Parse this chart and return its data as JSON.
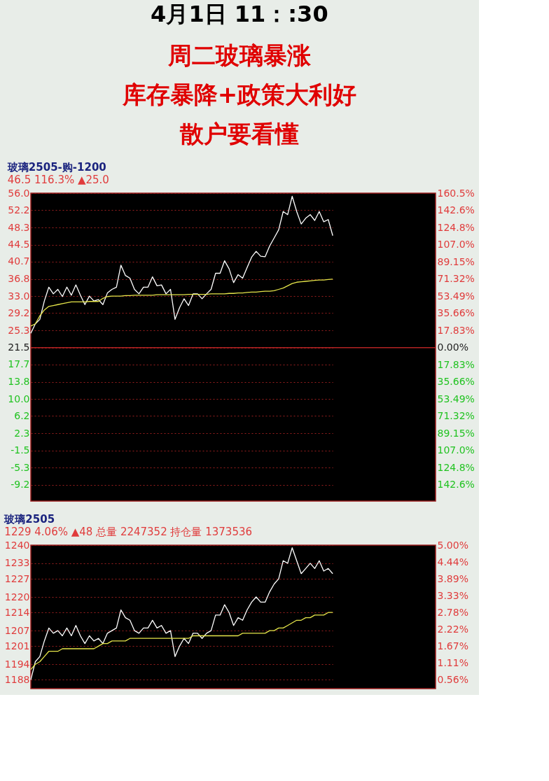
{
  "chart_data": [
    {
      "type": "line",
      "title": "玻璃2505-购-1200",
      "subtitle": "46.5 116.3% ▲25.0",
      "annotations": [
        "4月1日  11：:30",
        "周二玻璃暴涨",
        "库存暴降+政策大利好",
        "散户要看懂"
      ],
      "categories": [
        null,
        null,
        null,
        null,
        null,
        null,
        null,
        null,
        null,
        null,
        null,
        null,
        null,
        null,
        null,
        null,
        null,
        null,
        null,
        null,
        null,
        null,
        null,
        null,
        null,
        null,
        null,
        null,
        null,
        null,
        null,
        null,
        null,
        null,
        null,
        null,
        null,
        null,
        null,
        null,
        null,
        null,
        null,
        null,
        null,
        null,
        null,
        null,
        null,
        null,
        null,
        null,
        null,
        null,
        null,
        null,
        null,
        null,
        null,
        null,
        null,
        null,
        null,
        null,
        null,
        null,
        null,
        null
      ],
      "series": [
        {
          "color": "#ffffff",
          "values": [
            24.7,
            26.8,
            27.8,
            31.9,
            35.0,
            33.5,
            34.5,
            32.9,
            35.0,
            33.2,
            35.5,
            33.2,
            31.1,
            33.0,
            31.9,
            32.2,
            31.1,
            33.7,
            34.5,
            35.0,
            39.9,
            37.6,
            37.0,
            34.5,
            33.5,
            35.0,
            35.0,
            37.3,
            35.3,
            35.5,
            33.5,
            34.5,
            27.8,
            30.4,
            32.4,
            30.9,
            33.5,
            33.5,
            32.4,
            33.5,
            34.5,
            38.1,
            38.1,
            40.9,
            39.1,
            36.0,
            37.8,
            37.0,
            39.4,
            41.7,
            43.0,
            41.9,
            41.8,
            44.2,
            46.0,
            47.8,
            51.9,
            51.2,
            55.3,
            51.9,
            49.1,
            50.4,
            51.2,
            49.9,
            51.9,
            49.6,
            50.1,
            46.5
          ]
        },
        {
          "color": "#e6e64a",
          "values": [
            26.3,
            26.8,
            28.6,
            29.9,
            30.7,
            30.9,
            31.1,
            31.3,
            31.5,
            31.7,
            31.7,
            31.7,
            31.7,
            31.8,
            31.8,
            31.8,
            32.5,
            32.9,
            33.0,
            33.0,
            33.0,
            33.1,
            33.1,
            33.2,
            33.2,
            33.2,
            33.2,
            33.2,
            33.3,
            33.3,
            33.3,
            33.3,
            33.3,
            33.3,
            33.3,
            33.4,
            33.4,
            33.4,
            33.4,
            33.4,
            33.5,
            33.5,
            33.5,
            33.5,
            33.6,
            33.6,
            33.7,
            33.7,
            33.8,
            33.9,
            33.9,
            34.0,
            34.1,
            34.1,
            34.2,
            34.5,
            34.8,
            35.3,
            35.8,
            36.1,
            36.2,
            36.3,
            36.4,
            36.5,
            36.6,
            36.6,
            36.7,
            36.8
          ]
        }
      ],
      "ylim": [
        -12.8,
        56.0
      ],
      "yticks": [
        {
          "value": 56.0,
          "label": "56.0"
        },
        {
          "value": 52.2,
          "label": "52.2"
        },
        {
          "value": 48.3,
          "label": "48.3"
        },
        {
          "value": 44.5,
          "label": "44.5"
        },
        {
          "value": 40.7,
          "label": "40.7"
        },
        {
          "value": 36.8,
          "label": "36.8"
        },
        {
          "value": 33.0,
          "label": "33.0"
        },
        {
          "value": 29.2,
          "label": "29.2"
        },
        {
          "value": 25.3,
          "label": "25.3"
        },
        {
          "value": 21.5,
          "label": "21.5"
        },
        {
          "value": 17.7,
          "label": "17.7"
        },
        {
          "value": 13.8,
          "label": "13.8"
        },
        {
          "value": 10.0,
          "label": "10.0"
        },
        {
          "value": 6.2,
          "label": "6.2"
        },
        {
          "value": 2.3,
          "label": "2.3"
        },
        {
          "value": -1.5,
          "label": "-1.5"
        },
        {
          "value": -5.3,
          "label": "-5.3"
        },
        {
          "value": -9.2,
          "label": "-9.2"
        }
      ],
      "y2lim": [
        -159.6,
        160.5
      ],
      "y2ticks": [
        {
          "value": 160.5,
          "label": "160.5%"
        },
        {
          "value": 142.6,
          "label": "142.6%"
        },
        {
          "value": 124.8,
          "label": "124.8%"
        },
        {
          "value": 107.0,
          "label": "107.0%"
        },
        {
          "value": 89.15,
          "label": "89.15%"
        },
        {
          "value": 71.32,
          "label": "71.32%"
        },
        {
          "value": 53.49,
          "label": "53.49%"
        },
        {
          "value": 35.66,
          "label": "35.66%"
        },
        {
          "value": 17.83,
          "label": "17.83%"
        },
        {
          "value": 0,
          "label": "0.00%"
        },
        {
          "value": -17.83,
          "label": "17.83%"
        },
        {
          "value": -35.66,
          "label": "35.66%"
        },
        {
          "value": -53.49,
          "label": "53.49%"
        },
        {
          "value": -71.32,
          "label": "71.32%"
        },
        {
          "value": -89.15,
          "label": "89.15%"
        },
        {
          "value": -107.0,
          "label": "107.0%"
        },
        {
          "value": -124.8,
          "label": "124.8%"
        },
        {
          "value": -142.6,
          "label": "142.6%"
        }
      ],
      "ref_lines": [
        {
          "axis": "y",
          "value": 21.5,
          "color": "#b22222"
        }
      ],
      "grid": "y"
    },
    {
      "type": "line",
      "title": "玻璃2505",
      "subtitle": "1229 4.06% ▲48 总量 2247352 持仓量 1373536",
      "categories": [
        null,
        null,
        null,
        null,
        null,
        null,
        null,
        null,
        null,
        null,
        null,
        null,
        null,
        null,
        null,
        null,
        null,
        null,
        null,
        null,
        null,
        null,
        null,
        null,
        null,
        null,
        null,
        null,
        null,
        null,
        null,
        null,
        null,
        null,
        null,
        null,
        null,
        null,
        null,
        null,
        null,
        null,
        null,
        null,
        null,
        null,
        null,
        null,
        null,
        null,
        null,
        null,
        null,
        null,
        null,
        null,
        null,
        null,
        null,
        null,
        null,
        null,
        null,
        null,
        null,
        null,
        null,
        null
      ],
      "series": [
        {
          "color": "#ffffff",
          "values": [
            1188,
            1195,
            1197,
            1203,
            1208,
            1206,
            1207,
            1205,
            1208,
            1205,
            1209,
            1205,
            1202,
            1205,
            1203,
            1204,
            1202,
            1206,
            1207,
            1208,
            1215,
            1212,
            1211,
            1207,
            1206,
            1208,
            1208,
            1211,
            1208,
            1209,
            1206,
            1207,
            1197,
            1201,
            1204,
            1202,
            1206,
            1206,
            1204,
            1206,
            1207,
            1213,
            1213,
            1217,
            1214,
            1209,
            1212,
            1211,
            1215,
            1218,
            1220,
            1218,
            1218,
            1222,
            1225,
            1227,
            1234,
            1233,
            1239,
            1234,
            1229,
            1231,
            1233,
            1231,
            1234,
            1230,
            1231,
            1229
          ]
        },
        {
          "color": "#e6e64a",
          "values": [
            1192,
            1194,
            1195,
            1197,
            1199,
            1199,
            1199,
            1200,
            1200,
            1200,
            1200,
            1200,
            1200,
            1200,
            1200,
            1201,
            1202,
            1202,
            1203,
            1203,
            1203,
            1203,
            1204,
            1204,
            1204,
            1204,
            1204,
            1204,
            1204,
            1204,
            1204,
            1204,
            1204,
            1204,
            1204,
            1204,
            1205,
            1205,
            1205,
            1205,
            1205,
            1205,
            1205,
            1205,
            1205,
            1205,
            1205,
            1206,
            1206,
            1206,
            1206,
            1206,
            1206,
            1207,
            1207,
            1208,
            1208,
            1209,
            1210,
            1211,
            1211,
            1212,
            1212,
            1213,
            1213,
            1213,
            1214,
            1214
          ]
        }
      ],
      "ylim": [
        1184.6,
        1240
      ],
      "yticks": [
        1240,
        1233,
        1227,
        1220,
        1214,
        1207,
        1201,
        1194,
        1188
      ],
      "y2lim": [
        0.27,
        5.0
      ],
      "y2ticks": [
        {
          "value": 5.0,
          "label": "5.00%"
        },
        {
          "value": 4.44,
          "label": "4.44%"
        },
        {
          "value": 3.89,
          "label": "3.89%"
        },
        {
          "value": 3.33,
          "label": "3.33%"
        },
        {
          "value": 2.78,
          "label": "2.78%"
        },
        {
          "value": 2.22,
          "label": "2.22%"
        },
        {
          "value": 1.67,
          "label": "1.67%"
        },
        {
          "value": 1.11,
          "label": "1.11%"
        },
        {
          "value": 0.56,
          "label": "0.56%"
        }
      ],
      "grid": "y"
    }
  ]
}
